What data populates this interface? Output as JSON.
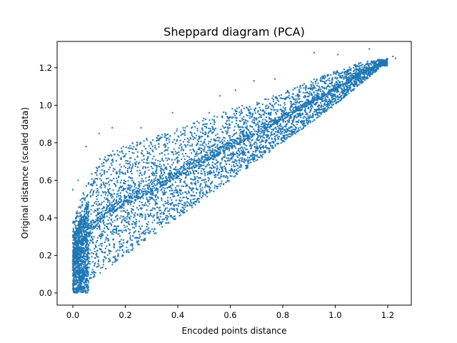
{
  "chart_data": {
    "type": "scatter",
    "title": "Sheppard diagram (PCA)",
    "xlabel": "Encoded points distance",
    "ylabel": "Original distance (scaled data)",
    "xlim": [
      -0.06,
      1.29
    ],
    "ylim": [
      -0.065,
      1.34
    ],
    "xticks": [
      0.0,
      0.2,
      0.4,
      0.6,
      0.8,
      1.0,
      1.2
    ],
    "xtick_labels": [
      "0.0",
      "0.2",
      "0.4",
      "0.6",
      "0.8",
      "1.0",
      "1.2"
    ],
    "yticks": [
      0.0,
      0.2,
      0.4,
      0.6,
      0.8,
      1.0,
      1.2
    ],
    "ytick_labels": [
      "0.0",
      "0.2",
      "0.4",
      "0.6",
      "0.8",
      "1.0",
      "1.2"
    ],
    "grid": false,
    "series": [
      {
        "color": "#1f77b4",
        "upper_envelope": [
          [
            0.0,
            0.38
          ],
          [
            0.05,
            0.58
          ],
          [
            0.1,
            0.72
          ],
          [
            0.2,
            0.79
          ],
          [
            0.3,
            0.83
          ],
          [
            0.4,
            0.88
          ],
          [
            0.5,
            0.93
          ],
          [
            0.6,
            0.98
          ],
          [
            0.7,
            1.02
          ],
          [
            0.8,
            1.07
          ],
          [
            0.9,
            1.13
          ],
          [
            1.0,
            1.18
          ],
          [
            1.1,
            1.23
          ],
          [
            1.2,
            1.25
          ]
        ],
        "lower_bound": [
          [
            0.0,
            0.0
          ],
          [
            0.2,
            0.2
          ],
          [
            0.4,
            0.4
          ],
          [
            0.6,
            0.6
          ],
          [
            0.8,
            0.8
          ],
          [
            1.0,
            1.0
          ],
          [
            1.18,
            1.21
          ]
        ],
        "outliers": [
          [
            0.1,
            0.85
          ],
          [
            0.15,
            0.88
          ],
          [
            0.26,
            0.88
          ],
          [
            0.38,
            0.96
          ],
          [
            0.52,
            0.96
          ],
          [
            0.56,
            1.05
          ],
          [
            0.62,
            1.08
          ],
          [
            0.69,
            1.13
          ],
          [
            0.77,
            1.14
          ],
          [
            0.92,
            1.28
          ],
          [
            1.01,
            1.27
          ],
          [
            1.13,
            1.3
          ],
          [
            1.22,
            1.26
          ],
          [
            1.23,
            1.25
          ],
          [
            0.02,
            0.6
          ],
          [
            0.05,
            0.78
          ],
          [
            0.0,
            0.55
          ]
        ]
      }
    ]
  }
}
